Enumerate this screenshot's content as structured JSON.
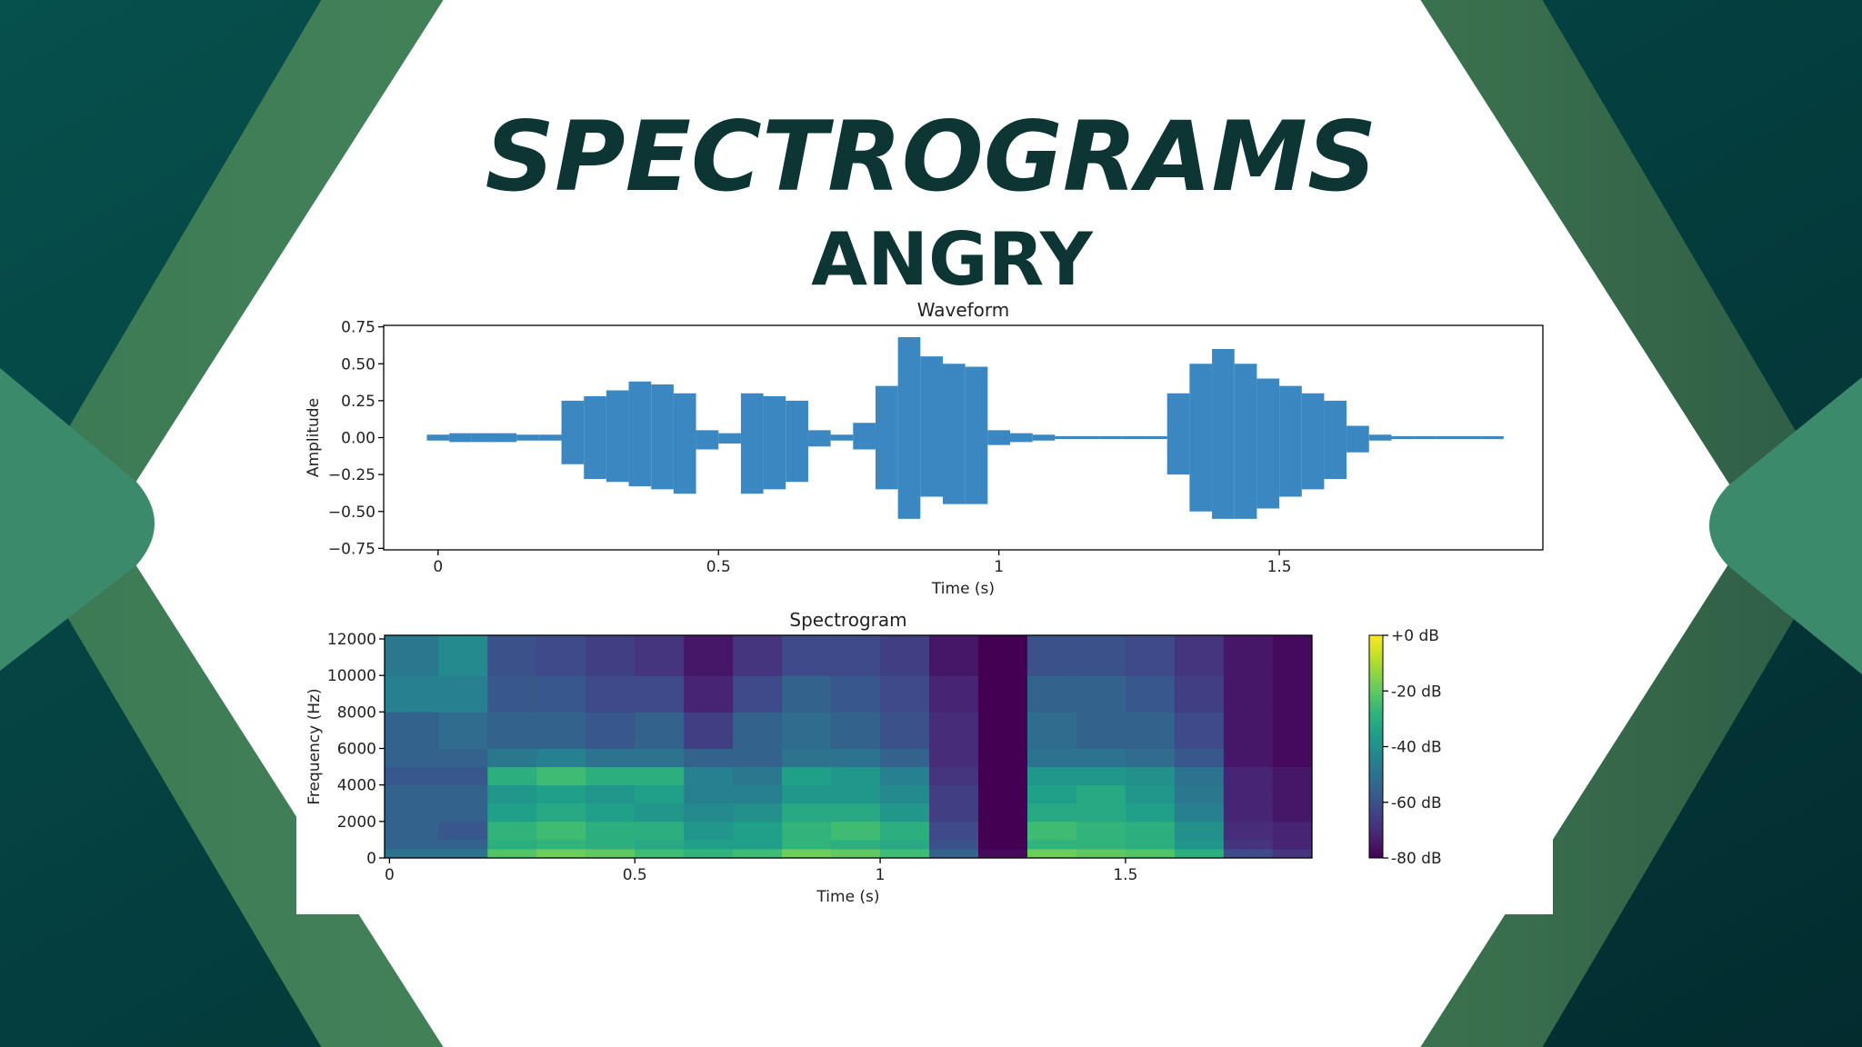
{
  "slide": {
    "title": "SPECTROGRAMS",
    "subtitle": "ANGRY"
  },
  "chart_data": [
    {
      "type": "waveform",
      "title": "Waveform",
      "x_label": "Time (s)",
      "y_label": "Amplitude",
      "color": "#3a87c2",
      "x": [
        0,
        0.04,
        0.08,
        0.12,
        0.16,
        0.2,
        0.24,
        0.28,
        0.32,
        0.36,
        0.4,
        0.44,
        0.48,
        0.52,
        0.56,
        0.6,
        0.64,
        0.68,
        0.72,
        0.76,
        0.8,
        0.84,
        0.88,
        0.92,
        0.96,
        1.0,
        1.04,
        1.08,
        1.12,
        1.16,
        1.2,
        1.24,
        1.28,
        1.32,
        1.36,
        1.4,
        1.44,
        1.48,
        1.52,
        1.56,
        1.6,
        1.64,
        1.68,
        1.72,
        1.76,
        1.8,
        1.84,
        1.88
      ],
      "max": [
        0.02,
        0.03,
        0.03,
        0.03,
        0.02,
        0.02,
        0.25,
        0.28,
        0.32,
        0.38,
        0.36,
        0.3,
        0.05,
        0.03,
        0.3,
        0.28,
        0.25,
        0.05,
        0.02,
        0.1,
        0.35,
        0.68,
        0.55,
        0.5,
        0.48,
        0.05,
        0.03,
        0.02,
        0.01,
        0.01,
        0.01,
        0.01,
        0.01,
        0.3,
        0.5,
        0.6,
        0.5,
        0.4,
        0.35,
        0.3,
        0.25,
        0.08,
        0.02,
        0.01,
        0.01,
        0.01,
        0.01,
        0.01
      ],
      "min": [
        -0.02,
        -0.03,
        -0.03,
        -0.03,
        -0.02,
        -0.02,
        -0.18,
        -0.28,
        -0.3,
        -0.33,
        -0.35,
        -0.38,
        -0.08,
        -0.04,
        -0.38,
        -0.35,
        -0.3,
        -0.06,
        -0.02,
        -0.08,
        -0.35,
        -0.55,
        -0.4,
        -0.45,
        -0.45,
        -0.05,
        -0.03,
        -0.02,
        -0.01,
        -0.01,
        -0.01,
        -0.01,
        -0.01,
        -0.25,
        -0.5,
        -0.55,
        -0.55,
        -0.48,
        -0.4,
        -0.35,
        -0.28,
        -0.1,
        -0.02,
        -0.01,
        -0.01,
        -0.01,
        -0.01,
        -0.01
      ],
      "xlim": [
        -0.097,
        1.97
      ],
      "ylim": [
        -0.76,
        0.76
      ],
      "xticks": [
        0,
        0.5,
        1,
        1.5
      ],
      "yticks": [
        {
          "value": -0.75,
          "label": "−0.75"
        },
        {
          "value": -0.5,
          "label": "−0.50"
        },
        {
          "value": -0.25,
          "label": "−0.25"
        },
        {
          "value": 0,
          "label": "0.00"
        },
        0.25,
        {
          "value": 0.5,
          "label": "0.50"
        },
        0.75
      ]
    },
    {
      "type": "heatmap",
      "title": "Spectrogram",
      "x_label": "Time (s)",
      "y_label": "Frequency (Hz)",
      "colormap": "viridis",
      "x_edges": [
        -0.01,
        0.1,
        0.2,
        0.3,
        0.4,
        0.5,
        0.6,
        0.7,
        0.8,
        0.9,
        1.0,
        1.1,
        1.2,
        1.3,
        1.4,
        1.5,
        1.6,
        1.7,
        1.8,
        1.88
      ],
      "y_edges": [
        0,
        500,
        1000,
        2000,
        3000,
        4000,
        5000,
        6000,
        8000,
        10000,
        12200
      ],
      "z": [
        [
          -50,
          -55,
          -55,
          -55,
          -55,
          -58,
          -55,
          -55,
          -45,
          -48
        ],
        [
          -50,
          -55,
          -58,
          -55,
          -55,
          -58,
          -55,
          -52,
          -45,
          -42
        ],
        [
          -22,
          -30,
          -28,
          -35,
          -38,
          -30,
          -48,
          -55,
          -58,
          -60
        ],
        [
          -18,
          -28,
          -25,
          -32,
          -35,
          -25,
          -45,
          -55,
          -58,
          -62
        ],
        [
          -20,
          -30,
          -30,
          -35,
          -38,
          -30,
          -50,
          -58,
          -62,
          -65
        ],
        [
          -25,
          -32,
          -30,
          -38,
          -35,
          -30,
          -50,
          -55,
          -62,
          -68
        ],
        [
          -28,
          -35,
          -38,
          -42,
          -45,
          -45,
          -55,
          -65,
          -72,
          -75
        ],
        [
          -25,
          -35,
          -35,
          -40,
          -45,
          -48,
          -55,
          -55,
          -62,
          -68
        ],
        [
          -18,
          -28,
          -28,
          -32,
          -38,
          -35,
          -50,
          -52,
          -55,
          -62
        ],
        [
          -20,
          -30,
          -25,
          -32,
          -38,
          -38,
          -50,
          -55,
          -58,
          -62
        ],
        [
          -25,
          -32,
          -30,
          -38,
          -42,
          -45,
          -55,
          -60,
          -62,
          -65
        ],
        [
          -55,
          -60,
          -62,
          -65,
          -65,
          -68,
          -70,
          -70,
          -72,
          -75
        ],
        [
          -78,
          -80,
          -80,
          -80,
          -80,
          -80,
          -80,
          -80,
          -80,
          -80
        ],
        [
          -18,
          -28,
          -25,
          -32,
          -35,
          -38,
          -50,
          -52,
          -55,
          -60
        ],
        [
          -20,
          -28,
          -28,
          -32,
          -32,
          -38,
          -50,
          -55,
          -55,
          -60
        ],
        [
          -22,
          -30,
          -30,
          -35,
          -38,
          -40,
          -52,
          -55,
          -58,
          -62
        ],
        [
          -30,
          -38,
          -40,
          -45,
          -48,
          -50,
          -58,
          -62,
          -65,
          -68
        ],
        [
          -62,
          -68,
          -70,
          -72,
          -72,
          -72,
          -75,
          -75,
          -75,
          -75
        ],
        [
          -68,
          -72,
          -72,
          -75,
          -75,
          -75,
          -78,
          -78,
          -78,
          -78
        ]
      ],
      "xlim": [
        -0.01,
        1.88
      ],
      "ylim": [
        0,
        12200
      ],
      "xticks": [
        0,
        0.5,
        1,
        1.5
      ],
      "yticks": [
        0,
        2000,
        4000,
        6000,
        8000,
        10000,
        12000
      ],
      "clim": [
        -80,
        0
      ],
      "cticks": [
        {
          "value": -80,
          "label": "-80 dB"
        },
        {
          "value": -60,
          "label": "-60 dB"
        },
        {
          "value": -40,
          "label": "-40 dB"
        },
        {
          "value": -20,
          "label": "-20 dB"
        },
        {
          "value": 0,
          "label": "+0 dB"
        }
      ]
    }
  ]
}
